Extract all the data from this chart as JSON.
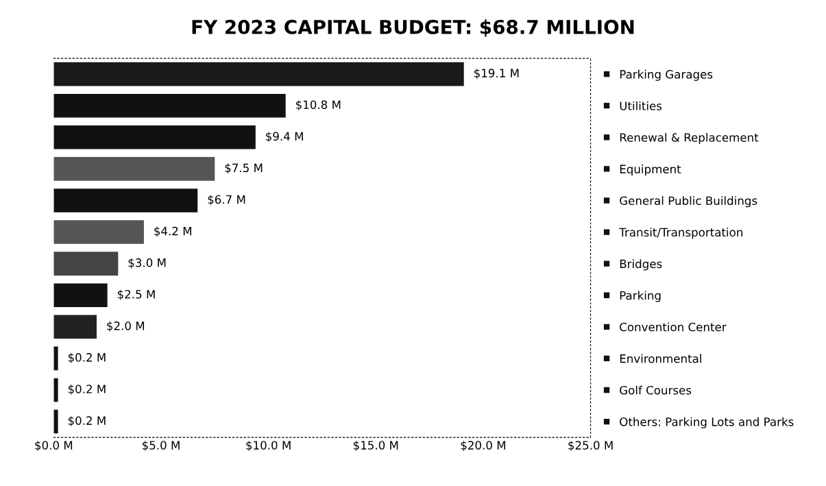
{
  "chart_data": {
    "type": "bar",
    "orientation": "horizontal",
    "title": "FY 2023 CAPITAL BUDGET: $68.7 MILLION",
    "categories": [
      "Parking Garages",
      "Utilities",
      "Renewal & Replacement",
      "Equipment",
      "General Public Buildings",
      "Transit/Transportation",
      "Bridges",
      "Parking",
      "Convention Center",
      "Environmental",
      "Golf Courses",
      "Others: Parking Lots and Parks"
    ],
    "values": [
      19.1,
      10.8,
      9.4,
      7.5,
      6.7,
      4.2,
      3.0,
      2.5,
      2.0,
      0.2,
      0.2,
      0.2
    ],
    "value_labels": [
      "$19.1 M",
      "$10.8 M",
      "$9.4 M",
      "$7.5 M",
      "$6.7 M",
      "$4.2 M",
      "$3.0 M",
      "$2.5 M",
      "$2.0 M",
      "$0.2 M",
      "$0.2 M",
      "$0.2 M"
    ],
    "colors": [
      "#1a1a1a",
      "#111111",
      "#111111",
      "#555555",
      "#111111",
      "#555555",
      "#444444",
      "#111111",
      "#222222",
      "#111111",
      "#111111",
      "#111111"
    ],
    "xlim": [
      0,
      25
    ],
    "xticks": [
      {
        "value": 0,
        "label": "$0.0 M"
      },
      {
        "value": 5,
        "label": "$5.0 M"
      },
      {
        "value": 10,
        "label": "$10.0 M"
      },
      {
        "value": 15,
        "label": "$15.0 M"
      },
      {
        "value": 20,
        "label": "$20.0 M"
      },
      {
        "value": 25,
        "label": "$25.0 M"
      }
    ],
    "grid": false
  }
}
